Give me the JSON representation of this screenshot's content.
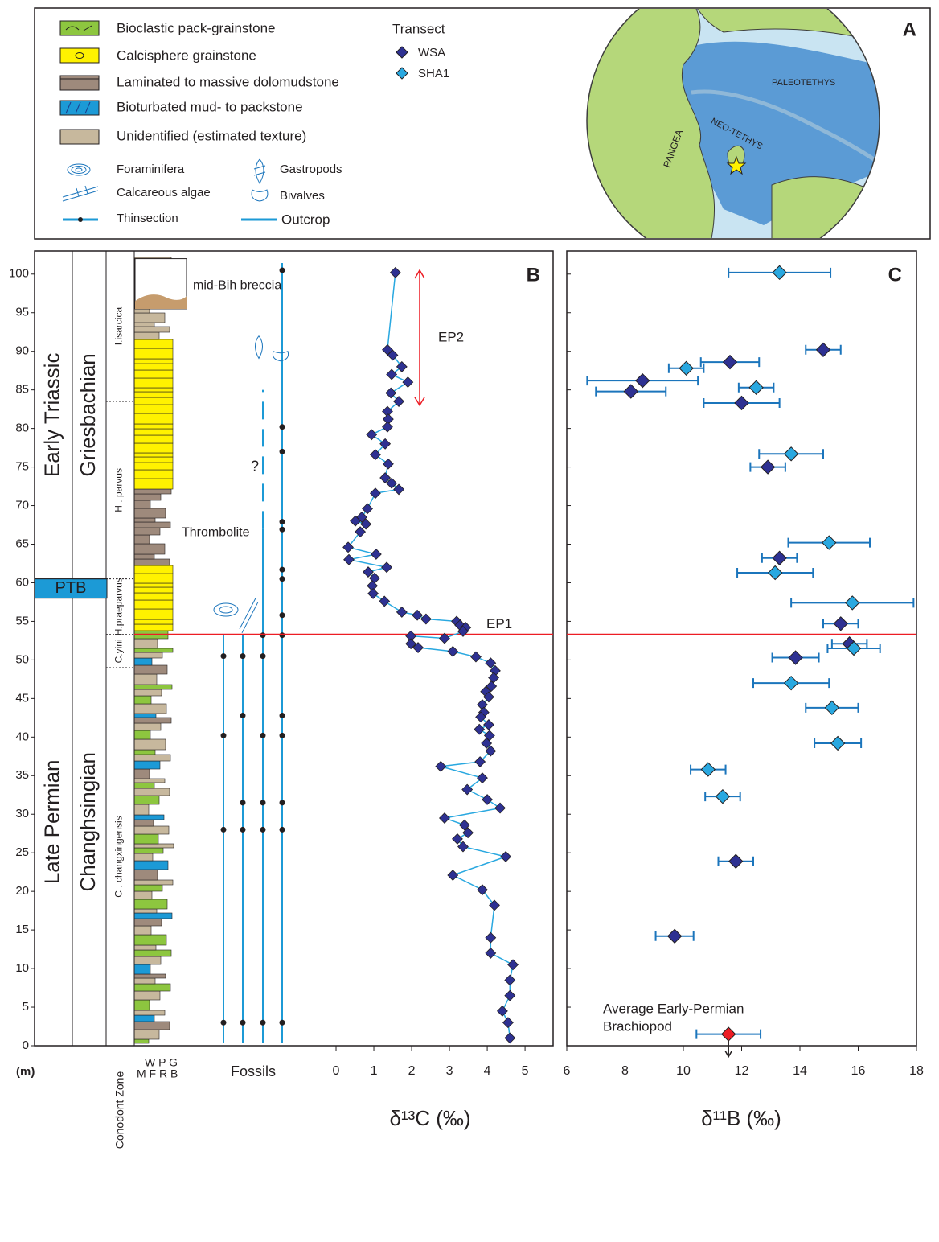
{
  "panel_a": {
    "label": "A",
    "legend": [
      "Bioclastic pack-grainstone",
      "Calcisphere grainstone",
      "Laminated to massive dolomudstone",
      "Bioturbated mud- to packstone",
      "Unidentified (estimated texture)",
      "Foraminifera",
      "Calcareous algae",
      "Thinsection",
      "Gastropods",
      "Bivalves",
      "Outcrop"
    ],
    "transect_title": "Transect",
    "transects": [
      "WSA",
      "SHA1"
    ],
    "map_labels": [
      "PALEOTETHYS",
      "NEO-TETHYS",
      "PANGEA"
    ]
  },
  "chart_data": [
    {
      "type": "line",
      "panel_label": "B",
      "xlabel": "δ¹³C (‰)",
      "ylabel": "(m)",
      "xlim": [
        -1,
        5.7
      ],
      "xticks": [
        0,
        1,
        2,
        3,
        4,
        5
      ],
      "ylim": [
        0,
        103
      ],
      "yticks": [
        0,
        5,
        10,
        15,
        20,
        25,
        30,
        35,
        40,
        45,
        50,
        55,
        60,
        65,
        70,
        75,
        80,
        85,
        90,
        95,
        100
      ],
      "series": [
        {
          "color": "#2e3192",
          "line_color": "#29a8e0",
          "x": [
            1.57,
            1.36,
            1.5,
            1.74,
            1.47,
            1.9,
            1.45,
            1.66,
            1.36,
            1.38,
            1.36,
            0.94,
            1.3,
            1.04,
            1.38,
            1.3,
            1.47,
            1.66,
            1.04,
            0.83,
            0.68,
            0.51,
            0.79,
            0.64,
            0.32,
            1.06,
            0.34,
            1.34,
            0.85,
            1.02,
            0.96,
            0.98,
            1.28,
            1.74,
            2.15,
            2.38,
            3.19,
            3.28,
            3.43,
            3.36,
            2.87,
            1.98,
            1.98,
            2.17,
            3.09,
            3.7,
            4.09,
            4.21,
            4.17,
            4.11,
            3.96,
            4.04,
            3.87,
            3.91,
            3.83,
            4.04,
            3.79,
            4.06,
            3.98,
            4.09,
            3.81,
            2.77,
            3.87,
            3.47,
            4.0,
            4.34,
            2.87,
            3.4,
            3.49,
            3.21,
            3.36,
            4.49,
            3.09,
            3.87,
            4.19,
            4.09,
            4.09,
            4.68,
            4.6,
            4.6,
            4.4,
            4.55,
            4.6
          ],
          "y": [
            100.2,
            90.2,
            89.5,
            88.0,
            87.0,
            86.0,
            84.6,
            83.5,
            82.2,
            81.2,
            80.2,
            79.2,
            78.0,
            76.6,
            75.4,
            73.6,
            72.9,
            72.1,
            71.6,
            69.6,
            68.5,
            68.0,
            67.6,
            66.6,
            64.6,
            63.7,
            63.0,
            62.0,
            61.4,
            60.6,
            59.6,
            58.6,
            57.6,
            56.2,
            55.8,
            55.3,
            55.0,
            54.5,
            54.2,
            53.7,
            52.8,
            53.1,
            52.1,
            51.6,
            51.1,
            50.4,
            49.6,
            48.6,
            47.7,
            46.6,
            45.9,
            45.2,
            44.2,
            43.2,
            42.6,
            41.6,
            41.0,
            40.2,
            39.2,
            38.2,
            36.8,
            36.2,
            34.7,
            33.2,
            31.9,
            30.8,
            29.5,
            28.6,
            27.6,
            26.8,
            25.8,
            24.5,
            22.1,
            20.2,
            18.2,
            14.0,
            12.0,
            10.5,
            8.5,
            6.5,
            4.5,
            3.0,
            1.0
          ]
        }
      ],
      "epochs": [
        {
          "label": "Early Triassic",
          "from": 60.5,
          "to": 103
        },
        {
          "label": "PTB",
          "from": 58,
          "to": 60.5
        },
        {
          "label": "Late Permian",
          "from": 0,
          "to": 58
        }
      ],
      "stages": [
        {
          "label": "Griesbachian",
          "from": 60.5,
          "to": 103
        },
        {
          "label": "Changhsingian",
          "from": 0,
          "to": 58
        }
      ],
      "zones": [
        {
          "label": "I.isarcica",
          "from": 83.5,
          "to": 103
        },
        {
          "label": "H . parvus",
          "from": 60.5,
          "to": 83.5
        },
        {
          "label": "H.praeparvus",
          "from": 53.3,
          "to": 60.5
        },
        {
          "label": "C.yini",
          "from": 49,
          "to": 53.3
        },
        {
          "label": "C . changxingensis",
          "from": 0,
          "to": 49
        }
      ],
      "zone_title": "Conodont Zone",
      "texture_top": "W P G",
      "texture_bottom": "M F R B",
      "fossils_label": "Fossils",
      "annotations": [
        {
          "text": "mid-Bih breccia",
          "y": 98.5
        },
        {
          "text": "Thrombolite",
          "y": 66.5
        },
        {
          "text": "?",
          "y": 75
        },
        {
          "text": "EP1",
          "y": 53.3,
          "color": "#ed1c24"
        },
        {
          "text": "EP2",
          "from": 83,
          "to": 100.5,
          "color": "#ed1c24"
        }
      ]
    },
    {
      "type": "scatter",
      "panel_label": "C",
      "xlabel": "δ¹¹B (‰)",
      "xlim": [
        6,
        18
      ],
      "xticks": [
        6,
        8,
        10,
        12,
        14,
        16,
        18
      ],
      "ylim": [
        0,
        103
      ],
      "yticks": [
        0,
        5,
        10,
        15,
        20,
        25,
        30,
        35,
        40,
        45,
        50,
        55,
        60,
        65,
        70,
        75,
        80,
        85,
        90,
        95,
        100
      ],
      "error_color": "#1b75bc",
      "series": [
        {
          "name": "WSA",
          "color": "#2e3192",
          "x": [
            14.8,
            11.6,
            8.6,
            8.2,
            12.0,
            12.9,
            13.3,
            15.4,
            15.7,
            13.85,
            11.8,
            9.7
          ],
          "y": [
            90.2,
            88.6,
            86.2,
            84.8,
            83.3,
            75,
            63.2,
            54.7,
            52.1,
            50.3,
            23.9,
            14.2
          ],
          "error": [
            0.6,
            1.0,
            1.9,
            1.2,
            1.3,
            0.6,
            0.6,
            0.6,
            0.6,
            0.8,
            0.6,
            0.65
          ]
        },
        {
          "name": "SHA1",
          "color": "#29a8e0",
          "x": [
            13.3,
            10.1,
            12.5,
            13.7,
            15.0,
            13.15,
            15.8,
            15.85,
            13.7,
            15.1,
            15.3,
            10.85,
            11.35
          ],
          "y": [
            100.2,
            87.8,
            85.3,
            76.7,
            65.2,
            61.3,
            57.4,
            51.5,
            47,
            43.8,
            39.2,
            35.8,
            32.3
          ],
          "error": [
            1.75,
            0.6,
            0.6,
            1.1,
            1.4,
            1.3,
            2.1,
            0.9,
            1.3,
            0.9,
            0.8,
            0.6,
            0.6
          ]
        },
        {
          "name": "Average Early-Permian Brachiopod",
          "color": "#ed1c24",
          "x": [
            11.55
          ],
          "y": [
            1.5
          ],
          "error": [
            1.1
          ]
        }
      ]
    }
  ]
}
